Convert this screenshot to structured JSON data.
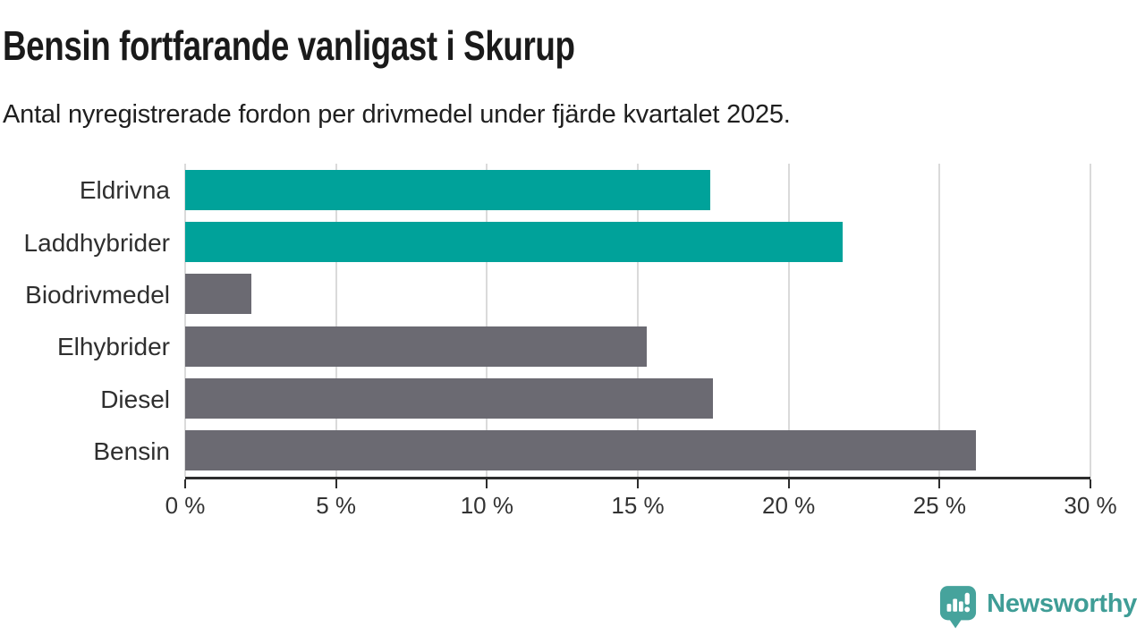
{
  "header": {
    "title": "Bensin fortfarande vanligast i Skurup",
    "subtitle": "Antal nyregistrerade fordon per drivmedel under fjärde kvartalet 2025."
  },
  "chart_data": {
    "type": "bar",
    "orientation": "horizontal",
    "title": "Bensin fortfarande vanligast i Skurup",
    "subtitle": "Antal nyregistrerade fordon per drivmedel under fjärde kvartalet 2025.",
    "categories": [
      "Eldrivna",
      "Laddhybrider",
      "Biodrivmedel",
      "Elhybrider",
      "Diesel",
      "Bensin"
    ],
    "values": [
      17.4,
      21.8,
      2.2,
      15.3,
      17.5,
      26.2
    ],
    "unit": "%",
    "bar_colors": [
      "#00a29a",
      "#00a29a",
      "#6b6a72",
      "#6b6a72",
      "#6b6a72",
      "#6b6a72"
    ],
    "highlight_color": "#00a29a",
    "default_color": "#6b6a72",
    "xlim": [
      0,
      30
    ],
    "x_ticks": [
      0,
      5,
      10,
      15,
      20,
      25,
      30
    ],
    "x_tick_labels": [
      "0 %",
      "5 %",
      "10 %",
      "15 %",
      "20 %",
      "25 %",
      "30 %"
    ],
    "grid": "vertical",
    "grid_color": "#dadada",
    "axis_color": "#2d2d2d",
    "xlabel": "",
    "ylabel": ""
  },
  "branding": {
    "name": "Newsworthy",
    "logo_color": "#46a39c",
    "text_color": "#3f9d96"
  }
}
